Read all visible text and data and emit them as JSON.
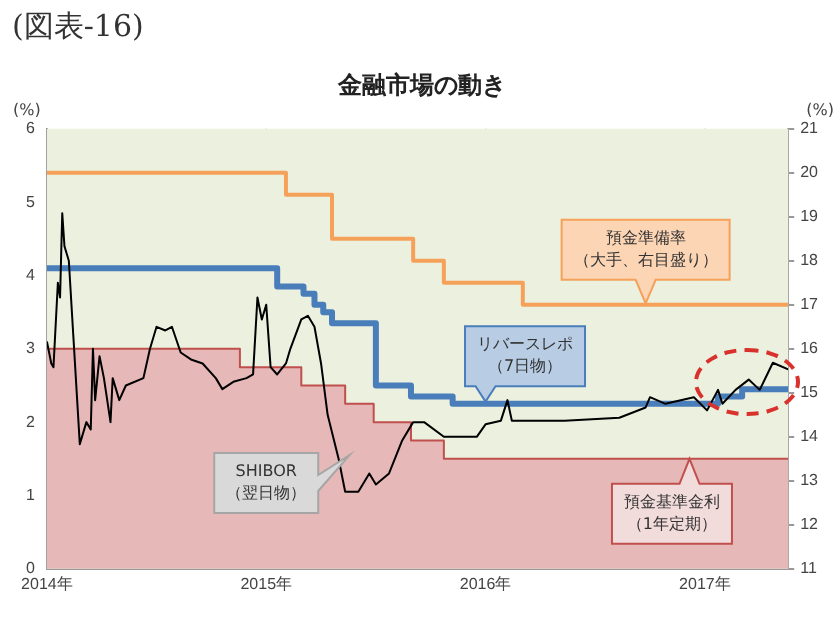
{
  "chart_data": {
    "type": "line",
    "title": "金融市場の動き",
    "ylabel": "(%)",
    "y2label": "(%)",
    "annotations": [
      "(図表-16)"
    ],
    "xlim": [
      2014,
      2017.38
    ],
    "xticks": [
      {
        "value": 2014,
        "label": "2014年"
      },
      {
        "value": 2015,
        "label": "2015年"
      },
      {
        "value": 2016,
        "label": "2016年"
      },
      {
        "value": 2017,
        "label": "2017年"
      }
    ],
    "ylim": [
      0,
      6
    ],
    "yticks": [
      0,
      1,
      2,
      3,
      4,
      5,
      6
    ],
    "y2lim": [
      11,
      21
    ],
    "y2ticks": [
      11,
      12,
      13,
      14,
      15,
      16,
      17,
      18,
      19,
      20,
      21
    ],
    "grid": "x",
    "legend": false,
    "marker": "none",
    "series": [
      {
        "name": "預金基準金利（1年定期）",
        "type": "area",
        "color": "#e6b8b7",
        "x": [
          2014,
          2014.88,
          2014.88,
          2015.16,
          2015.16,
          2015.36,
          2015.36,
          2015.49,
          2015.49,
          2015.66,
          2015.66,
          2015.81,
          2015.81,
          2017.38
        ],
        "values": [
          3,
          3,
          2.75,
          2.75,
          2.5,
          2.5,
          2.25,
          2.25,
          2,
          2,
          1.75,
          1.75,
          1.5,
          1.5
        ]
      },
      {
        "name": "預金準備率（大手、右目盛り）",
        "type": "step",
        "axis": "y2",
        "color": "#f5a15a",
        "x": [
          2014,
          2015.09,
          2015.3,
          2015.67,
          2015.81,
          2016.17,
          2017.38
        ],
        "values": [
          20,
          19.5,
          18.5,
          18,
          17.5,
          17,
          17
        ]
      },
      {
        "name": "リバースレポ（7日物）",
        "type": "step",
        "color": "#4a7ebb",
        "x": [
          2014,
          2015.05,
          2015.17,
          2015.22,
          2015.26,
          2015.3,
          2015.5,
          2015.66,
          2015.85,
          2017.06,
          2017.17,
          2017.38
        ],
        "values": [
          4.1,
          3.85,
          3.75,
          3.6,
          3.5,
          3.35,
          2.5,
          2.35,
          2.25,
          2.35,
          2.45,
          2.45
        ]
      },
      {
        "name": "SHIBOR（翌日物）",
        "type": "line",
        "color": "#000000",
        "x": [
          2014,
          2014.02,
          2014.03,
          2014.05,
          2014.06,
          2014.07,
          2014.08,
          2014.1,
          2014.12,
          2014.15,
          2014.18,
          2014.2,
          2014.21,
          2014.22,
          2014.24,
          2014.26,
          2014.29,
          2014.3,
          2014.33,
          2014.36,
          2014.44,
          2014.47,
          2014.5,
          2014.54,
          2014.57,
          2014.61,
          2014.66,
          2014.71,
          2014.77,
          2014.8,
          2014.85,
          2014.91,
          2014.94,
          2014.96,
          2014.98,
          2015,
          2015.02,
          2015.05,
          2015.09,
          2015.11,
          2015.16,
          2015.19,
          2015.22,
          2015.25,
          2015.28,
          2015.33,
          2015.36,
          2015.42,
          2015.47,
          2015.5,
          2015.56,
          2015.62,
          2015.67,
          2015.72,
          2015.81,
          2015.96,
          2016,
          2016.07,
          2016.1,
          2016.12,
          2016.36,
          2016.61,
          2016.73,
          2016.75,
          2016.82,
          2016.95,
          2017.01,
          2017.06,
          2017.08,
          2017.14,
          2017.2,
          2017.25,
          2017.31,
          2017.38
        ],
        "values": [
          3.1,
          2.8,
          2.75,
          3.9,
          3.7,
          4.85,
          4.4,
          4.2,
          3.2,
          1.7,
          2,
          1.9,
          3,
          2.3,
          2.9,
          2.6,
          2,
          2.6,
          2.3,
          2.5,
          2.6,
          3,
          3.3,
          3.25,
          3.3,
          2.95,
          2.85,
          2.8,
          2.6,
          2.45,
          2.55,
          2.6,
          2.65,
          3.7,
          3.4,
          3.6,
          2.75,
          2.65,
          2.8,
          3,
          3.4,
          3.45,
          3.3,
          2.8,
          2.1,
          1.5,
          1.05,
          1.05,
          1.3,
          1.15,
          1.3,
          1.75,
          2,
          2,
          1.8,
          1.8,
          1.97,
          2.02,
          2.3,
          2.02,
          2.02,
          2.06,
          2.2,
          2.34,
          2.25,
          2.34,
          2.16,
          2.44,
          2.25,
          2.44,
          2.58,
          2.44,
          2.81,
          2.72
        ]
      }
    ]
  }
}
